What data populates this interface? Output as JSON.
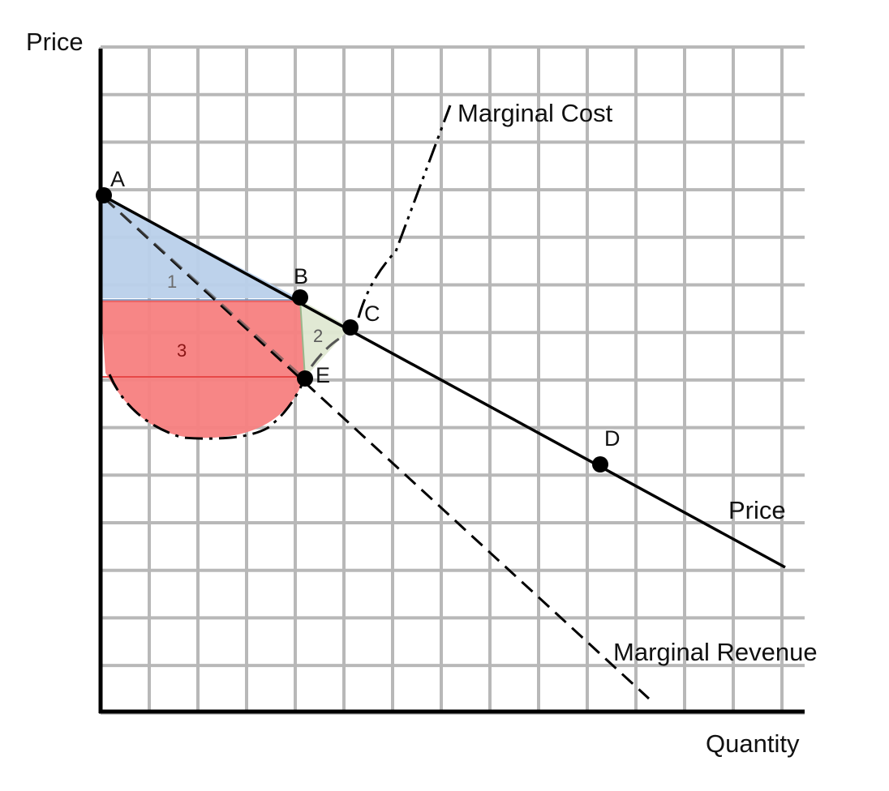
{
  "axes": {
    "y_label": "Price",
    "x_label": "Quantity"
  },
  "curves": {
    "marginal_cost": "Marginal Cost",
    "marginal_revenue": "Marginal Revenue",
    "price": "Price"
  },
  "points": {
    "a": "A",
    "b": "B",
    "c": "C",
    "d": "D",
    "e": "E"
  },
  "regions": {
    "r1": "1",
    "r2": "2",
    "r3": "3"
  },
  "colors": {
    "region_1": "#b9d0ea",
    "region_2": "#dfe8d2",
    "region_3": "#f77f80",
    "grid": "#b8b8b8",
    "ink": "#000000",
    "region_1_text": "#6c6c6c",
    "region_2_text": "#5a5a5a",
    "region_3_text": "#8a1515"
  }
}
